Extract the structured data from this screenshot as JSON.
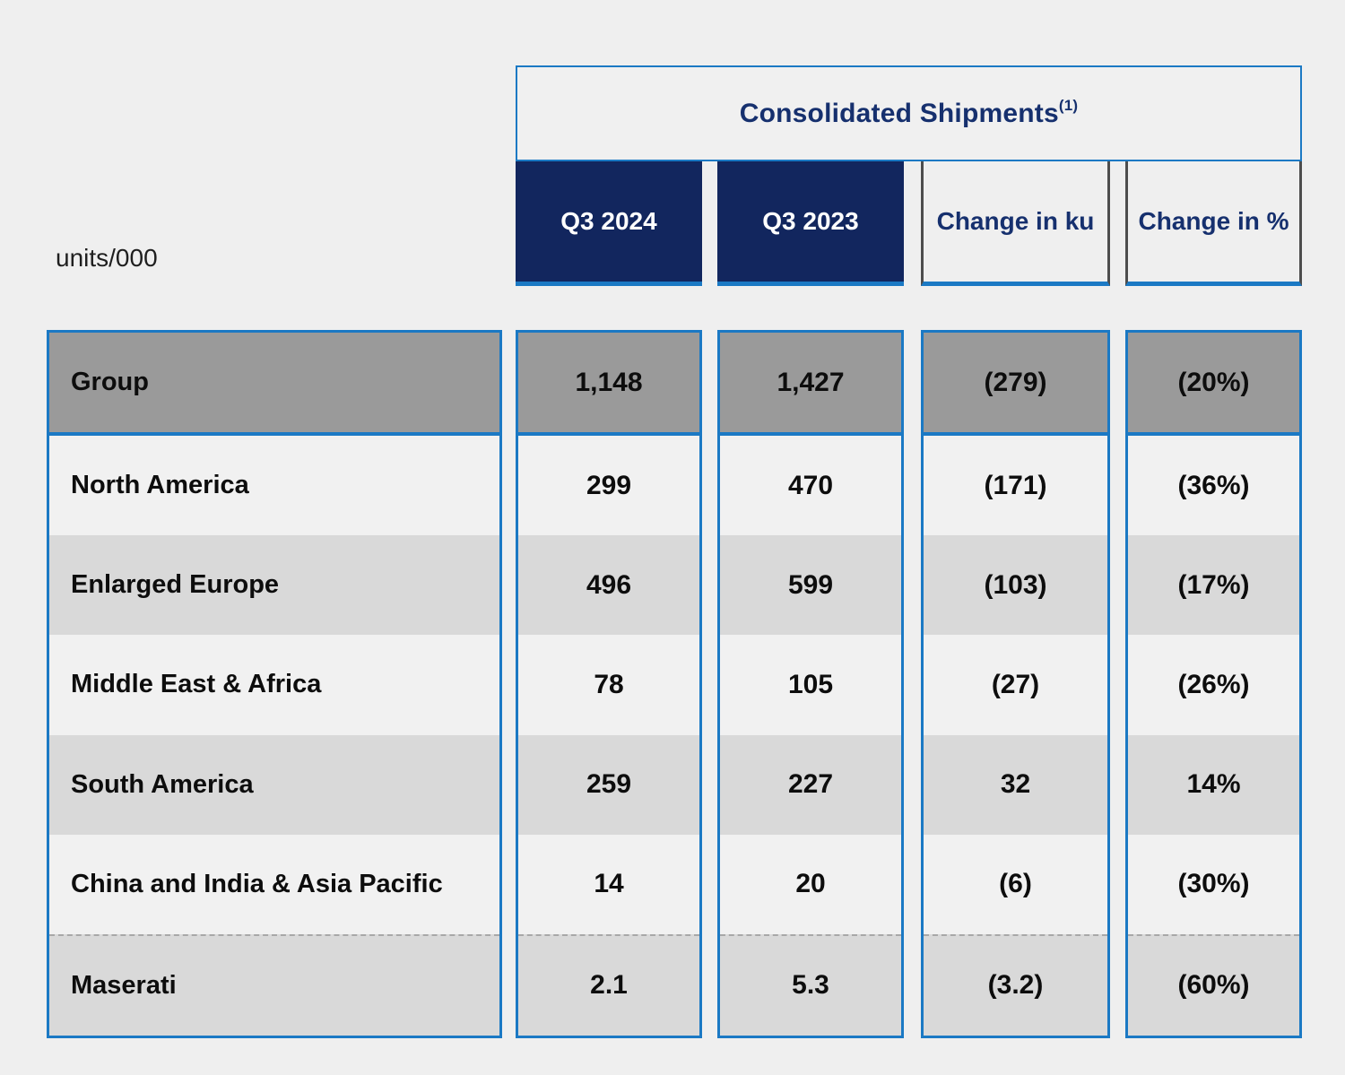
{
  "page": {
    "units_label": "units/000",
    "background": "#efefef"
  },
  "header": {
    "title": "Consolidated Shipments",
    "superscript": "(1)",
    "col_q3_2024": "Q3 2024",
    "col_q3_2023": "Q3 2023",
    "col_change_ku": "Change in ku",
    "col_change_pct": "Change in %"
  },
  "rows": [
    {
      "label": "Group",
      "values": [
        "1,148",
        "1,427",
        "(279)",
        "(20%)"
      ]
    },
    {
      "label": "North America",
      "values": [
        "299",
        "470",
        "(171)",
        "(36%)"
      ]
    },
    {
      "label": "Enlarged Europe",
      "values": [
        "496",
        "599",
        "(103)",
        "(17%)"
      ]
    },
    {
      "label": "Middle East & Africa",
      "values": [
        "78",
        "105",
        "(27)",
        "(26%)"
      ]
    },
    {
      "label": "South America",
      "values": [
        "259",
        "227",
        "32",
        "14%"
      ]
    },
    {
      "label": "China and India & Asia Pacific",
      "values": [
        "14",
        "20",
        "(6)",
        "(30%)"
      ]
    },
    {
      "label": "Maserati",
      "values": [
        "2.1",
        "5.3",
        "(3.2)",
        "(60%)"
      ]
    }
  ],
  "colors": {
    "accent_blue": "#1b79c4",
    "navy_fill": "#12265e",
    "navy_text": "#16306e",
    "group_row_gray": "#9a9a9a",
    "row_light": "#f1f1f1",
    "row_dark": "#d9d9d9",
    "outline_border_gray": "#4d4d4d",
    "page_background": "#efefef"
  },
  "chart_data": {
    "type": "table",
    "title": "Consolidated Shipments(1)",
    "units": "units/000",
    "columns": [
      "units/000",
      "Q3 2024",
      "Q3 2023",
      "Change in ku",
      "Change in %"
    ],
    "rows": [
      [
        "Group",
        "1,148",
        "1,427",
        "(279)",
        "(20%)"
      ],
      [
        "North America",
        "299",
        "470",
        "(171)",
        "(36%)"
      ],
      [
        "Enlarged Europe",
        "496",
        "599",
        "(103)",
        "(17%)"
      ],
      [
        "Middle East & Africa",
        "78",
        "105",
        "(27)",
        "(26%)"
      ],
      [
        "South America",
        "259",
        "227",
        "32",
        "14%"
      ],
      [
        "China and India & Asia Pacific",
        "14",
        "20",
        "(6)",
        "(30%)"
      ],
      [
        "Maserati",
        "2.1",
        "5.3",
        "(3.2)",
        "(60%)"
      ]
    ]
  }
}
